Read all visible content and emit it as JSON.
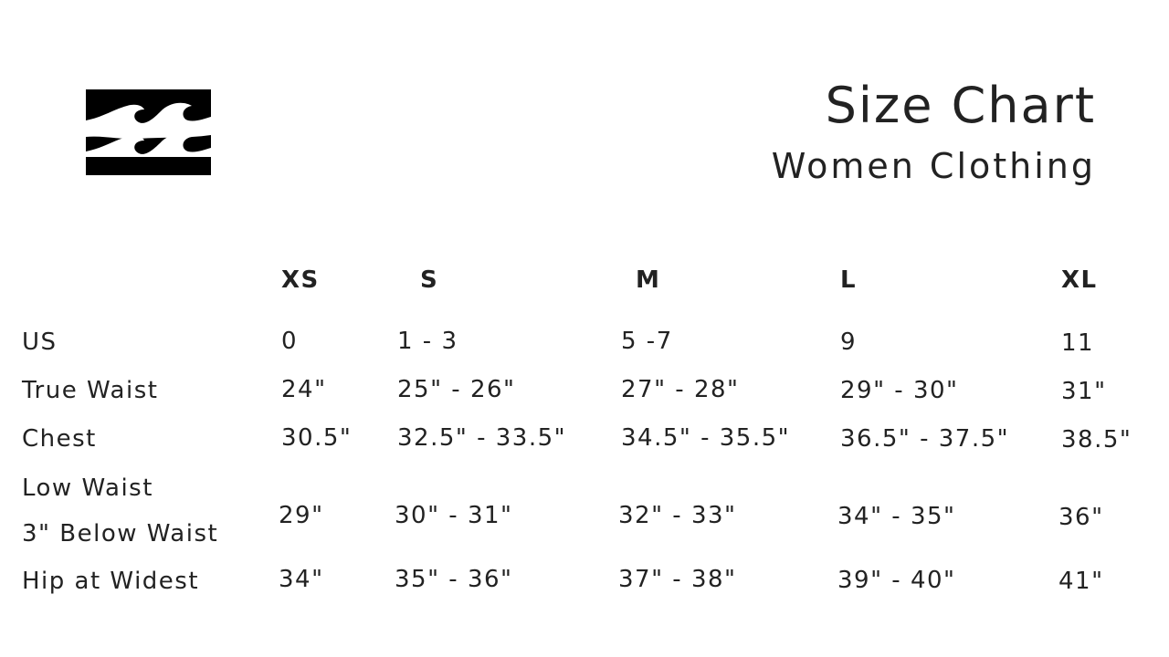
{
  "logo": {
    "brand": "billabong-wave-logo"
  },
  "header": {
    "title": "Size Chart",
    "subtitle": "Women Clothing"
  },
  "table": {
    "columns": [
      "XS",
      "S",
      "M",
      "L",
      "XL"
    ],
    "rows": [
      {
        "label": "US",
        "values": [
          "0",
          "1 - 3",
          "5 -7",
          "9",
          "11"
        ]
      },
      {
        "label": "True Waist",
        "values": [
          "24\"",
          "25\" - 26\"",
          "27\" - 28\"",
          "29\" - 30\"",
          "31\""
        ]
      },
      {
        "label": "Chest",
        "values": [
          "30.5\"",
          "32.5\" - 33.5\"",
          "34.5\" - 35.5\"",
          "36.5\" - 37.5\"",
          "38.5\""
        ]
      },
      {
        "label": "Low Waist",
        "label2": "3\" Below Waist",
        "values": [
          "29\"",
          "30\" - 31\"",
          "32\" - 33\"",
          "34\" - 35\"",
          "36\""
        ]
      },
      {
        "label": "Hip at Widest",
        "values": [
          "34\"",
          "35\" - 36\"",
          "37\" - 38\"",
          "39\" - 40\"",
          "41\""
        ]
      }
    ]
  }
}
